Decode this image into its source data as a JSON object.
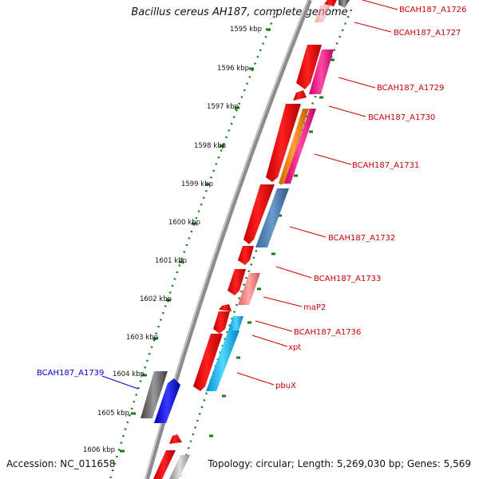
{
  "title": "Bacillus cereus AH187, complete genome",
  "footer": {
    "accession": "Accession: NC_011658",
    "stats": "Topology: circular; Length: 5,269,030 bp; Genes: 5,569"
  },
  "scale": {
    "unit": "kbp",
    "ticks": [
      "1595 kbp",
      "1596 kbp",
      "1597 kbp",
      "1598 kbp",
      "1599 kbp",
      "1600 kbp",
      "1601 kbp",
      "1602 kbp",
      "1603 kbp",
      "1604 kbp",
      "1605 kbp",
      "1606 kbp"
    ]
  },
  "gene_labels": [
    {
      "text": "BCAH187_A1726",
      "color": "#d00000"
    },
    {
      "text": "BCAH187_A1727",
      "color": "#d00000"
    },
    {
      "text": "BCAH187_A1729",
      "color": "#d00000"
    },
    {
      "text": "BCAH187_A1730",
      "color": "#d00000"
    },
    {
      "text": "BCAH187_A1731",
      "color": "#d00000"
    },
    {
      "text": "BCAH187_A1732",
      "color": "#d00000"
    },
    {
      "text": "BCAH187_A1733",
      "color": "#d00000"
    },
    {
      "text": "maP2",
      "color": "#d00000"
    },
    {
      "text": "BCAH187_A1736",
      "color": "#d00000"
    },
    {
      "text": "xpt",
      "color": "#d00000"
    },
    {
      "text": "pbuX",
      "color": "#d00000"
    },
    {
      "text": "BCAH187_A1739",
      "color": "#0000cc"
    }
  ],
  "colors": {
    "backbone": "#8c8c8c",
    "tick_dots": "#1a7a1a",
    "cds": "#e00000",
    "label_red": "#d00000",
    "label_blue": "#0000cc"
  }
}
